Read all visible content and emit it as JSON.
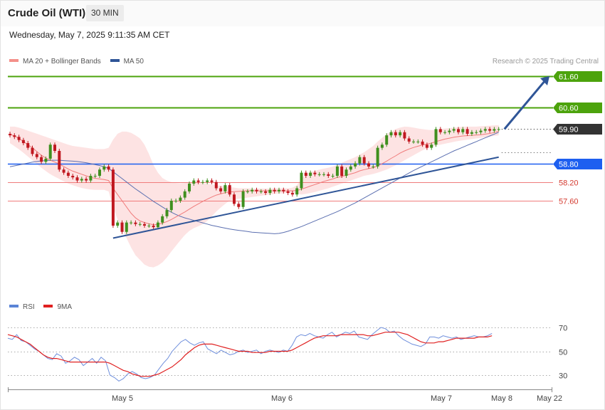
{
  "header": {
    "title": "Crude Oil (WTI)",
    "timeframe": "30 MIN",
    "datetime": "Wednesday, May 7, 2025 9:11:35 AM CET"
  },
  "legend_main": [
    {
      "label": "MA 20 + Bollinger Bands",
      "color": "#f4908a"
    },
    {
      "label": "MA 50",
      "color": "#2f5597"
    }
  ],
  "credit": "Research © 2025 Trading Central",
  "legend_rsi": [
    {
      "label": "RSI",
      "color": "#5b84d6"
    },
    {
      "label": "9MA",
      "color": "#e02020"
    }
  ],
  "colors": {
    "resistance": "#4ca30c",
    "support": "#1d5ff0",
    "support_minor": "#f07c7c",
    "last_price": "#333333",
    "arrow": "#2f5597",
    "candle_up": "#3f8f1e",
    "candle_down": "#c01820",
    "band_fill": "#fde3e3"
  },
  "chart_data": [
    {
      "type": "candlestick",
      "y_range": [
        56.95,
        62.05
      ],
      "x_labels": [
        "May 5",
        "May 6",
        "May 7",
        "May 8",
        "May 22"
      ],
      "levels": [
        {
          "value": 61.6,
          "label": "61.60",
          "kind": "resistance"
        },
        {
          "value": 60.6,
          "label": "60.60",
          "kind": "resistance"
        },
        {
          "value": 59.9,
          "label": "59.90",
          "kind": "last"
        },
        {
          "value": 58.8,
          "label": "58.80",
          "kind": "support"
        },
        {
          "value": 58.2,
          "label": "58.20",
          "kind": "support_minor"
        },
        {
          "value": 57.6,
          "label": "57.60",
          "kind": "support_minor"
        }
      ],
      "close": [
        59.7,
        59.65,
        59.55,
        59.45,
        59.3,
        59.1,
        59.0,
        58.85,
        58.95,
        59.4,
        59.2,
        58.6,
        58.5,
        58.4,
        58.35,
        58.25,
        58.3,
        58.25,
        58.4,
        58.4,
        58.6,
        58.7,
        58.6,
        56.8,
        56.9,
        56.6,
        56.9,
        56.9,
        56.85,
        56.85,
        56.8,
        56.8,
        56.75,
        56.9,
        57.1,
        57.3,
        57.6,
        57.6,
        57.7,
        57.9,
        58.15,
        58.25,
        58.2,
        58.2,
        58.25,
        58.2,
        58.0,
        57.9,
        58.1,
        57.8,
        57.5,
        57.4,
        57.9,
        57.9,
        57.95,
        57.9,
        57.9,
        57.85,
        57.95,
        57.9,
        57.95,
        57.9,
        57.85,
        57.8,
        58.0,
        58.5,
        58.4,
        58.5,
        58.45,
        58.45,
        58.45,
        58.4,
        58.4,
        58.7,
        58.4,
        58.6,
        58.7,
        58.8,
        59.0,
        58.8,
        58.7,
        58.7,
        59.3,
        59.4,
        59.7,
        59.8,
        59.7,
        59.8,
        59.6,
        59.5,
        59.5,
        59.5,
        59.4,
        59.3,
        59.4,
        59.9,
        59.8,
        59.8,
        59.85,
        59.9,
        59.8,
        59.9,
        59.75,
        59.8,
        59.8,
        59.85,
        59.9,
        59.85,
        59.9,
        59.9
      ],
      "ma20": [
        59.74,
        59.68,
        59.6,
        59.5,
        59.4,
        59.3,
        59.18,
        59.06,
        58.97,
        58.9,
        58.84,
        58.78,
        58.7,
        58.62,
        58.55,
        58.5,
        58.45,
        58.4,
        58.35,
        58.32,
        58.3,
        58.28,
        58.25,
        58.0,
        57.8,
        57.6,
        57.4,
        57.2,
        57.05,
        56.95,
        56.9,
        56.86,
        56.83,
        56.84,
        56.88,
        56.93,
        57.0,
        57.08,
        57.16,
        57.24,
        57.33,
        57.42,
        57.5,
        57.58,
        57.65,
        57.72,
        57.78,
        57.82,
        57.86,
        57.88,
        57.89,
        57.9,
        57.91,
        57.92,
        57.92,
        57.92,
        57.92,
        57.92,
        57.92,
        57.92,
        57.92,
        57.92,
        57.92,
        57.92,
        57.93,
        57.97,
        58.02,
        58.07,
        58.12,
        58.17,
        58.22,
        58.26,
        58.3,
        58.35,
        58.38,
        58.42,
        58.46,
        58.5,
        58.56,
        58.6,
        58.63,
        58.66,
        58.72,
        58.79,
        58.87,
        58.96,
        59.04,
        59.13,
        59.2,
        59.26,
        59.31,
        59.35,
        59.39,
        59.42,
        59.45,
        59.5,
        59.54,
        59.58,
        59.61,
        59.64,
        59.66,
        59.68,
        59.69,
        59.7,
        59.71,
        59.72,
        59.74,
        59.76,
        59.79,
        59.83
      ],
      "bb_upper": [
        59.98,
        59.98,
        59.95,
        59.9,
        59.85,
        59.8,
        59.75,
        59.7,
        59.65,
        59.6,
        59.55,
        59.5,
        59.45,
        59.4,
        59.36,
        59.34,
        59.32,
        59.3,
        59.28,
        59.26,
        59.26,
        59.26,
        59.3,
        59.56,
        59.75,
        59.82,
        59.82,
        59.78,
        59.7,
        59.6,
        59.4,
        59.1,
        58.75,
        58.5,
        58.33,
        58.25,
        58.2,
        58.17,
        58.16,
        58.17,
        58.18,
        58.18,
        58.17,
        58.16,
        58.14,
        58.12,
        58.1,
        58.08,
        58.06,
        58.04,
        58.02,
        58.0,
        58.0,
        58.0,
        57.99,
        57.99,
        57.99,
        57.99,
        57.99,
        58.0,
        58.0,
        58.0,
        58.0,
        58.02,
        58.1,
        58.3,
        58.45,
        58.52,
        58.56,
        58.6,
        58.63,
        58.66,
        58.7,
        58.75,
        58.82,
        58.88,
        58.94,
        59.0,
        59.08,
        59.16,
        59.26,
        59.36,
        59.5,
        59.62,
        59.74,
        59.82,
        59.9,
        59.95,
        59.98,
        59.97,
        59.95,
        59.92,
        59.9,
        59.88,
        59.87,
        59.88,
        59.9,
        59.92,
        59.93,
        59.95,
        59.96,
        59.98,
        59.98,
        59.98,
        59.98,
        59.99,
        60.0,
        60.01,
        60.02,
        60.03
      ],
      "bb_lower": [
        59.45,
        59.35,
        59.25,
        59.14,
        59.02,
        58.9,
        58.78,
        58.66,
        58.55,
        58.45,
        58.37,
        58.3,
        58.22,
        58.15,
        58.1,
        58.05,
        58.01,
        57.98,
        57.96,
        57.95,
        57.95,
        57.95,
        57.9,
        57.4,
        57.0,
        56.7,
        56.4,
        56.1,
        55.85,
        55.7,
        55.55,
        55.48,
        55.46,
        55.52,
        55.62,
        55.78,
        55.97,
        56.15,
        56.33,
        56.5,
        56.63,
        56.72,
        56.78,
        56.85,
        56.95,
        57.1,
        57.25,
        57.38,
        57.5,
        57.6,
        57.64,
        57.66,
        57.68,
        57.7,
        57.72,
        57.74,
        57.76,
        57.78,
        57.8,
        57.82,
        57.83,
        57.84,
        57.85,
        57.84,
        57.82,
        57.8,
        57.82,
        57.85,
        57.88,
        57.92,
        57.96,
        58.0,
        58.05,
        58.1,
        58.15,
        58.2,
        58.25,
        58.3,
        58.35,
        58.4,
        58.43,
        58.46,
        58.5,
        58.55,
        58.6,
        58.67,
        58.74,
        58.82,
        58.9,
        58.98,
        59.06,
        59.14,
        59.22,
        59.28,
        59.33,
        59.37,
        59.4,
        59.43,
        59.46,
        59.49,
        59.52,
        59.54,
        59.56,
        59.58,
        59.6,
        59.62,
        59.64,
        59.66,
        59.68,
        59.7
      ],
      "ma50": [
        58.69,
        58.72,
        58.75,
        58.78,
        58.81,
        58.84,
        58.86,
        58.88,
        58.89,
        58.9,
        58.9,
        58.9,
        58.89,
        58.88,
        58.87,
        58.86,
        58.84,
        58.82,
        58.79,
        58.76,
        58.73,
        58.69,
        58.64,
        58.53,
        58.42,
        58.31,
        58.2,
        58.09,
        57.98,
        57.88,
        57.78,
        57.68,
        57.58,
        57.49,
        57.4,
        57.31,
        57.23,
        57.16,
        57.1,
        57.05,
        57.01,
        56.97,
        56.93,
        56.89,
        56.85,
        56.81,
        56.78,
        56.75,
        56.72,
        56.69,
        56.67,
        56.65,
        56.63,
        56.61,
        56.59,
        56.58,
        56.57,
        56.56,
        56.55,
        56.54,
        56.55,
        56.58,
        56.62,
        56.67,
        56.72,
        56.77,
        56.83,
        56.89,
        56.95,
        57.01,
        57.07,
        57.13,
        57.19,
        57.25,
        57.32,
        57.39,
        57.46,
        57.53,
        57.61,
        57.69,
        57.77,
        57.85,
        57.93,
        58.01,
        58.09,
        58.17,
        58.25,
        58.33,
        58.41,
        58.49,
        58.57,
        58.64,
        58.71,
        58.78,
        58.85,
        58.92,
        58.99,
        59.06,
        59.13,
        59.2,
        59.26,
        59.32,
        59.38,
        59.44,
        59.5,
        59.56,
        59.62,
        59.68,
        59.74,
        59.8
      ],
      "trendline": [
        {
          "x_index": 23,
          "value": 56.4
        },
        {
          "x_index": 109,
          "value": 59.0
        }
      ],
      "projection_arrow": {
        "from": 59.9,
        "to": 61.6
      }
    },
    {
      "type": "line",
      "title": "RSI",
      "y_range": [
        20,
        80
      ],
      "y_ticks": [
        70,
        50,
        30
      ],
      "series": [
        {
          "name": "RSI",
          "values": [
            61,
            60,
            64,
            59,
            58,
            55,
            52,
            50,
            47,
            44,
            43,
            48,
            46,
            40,
            42,
            45,
            43,
            38,
            41,
            44,
            40,
            45,
            42,
            30,
            28,
            25,
            27,
            31,
            33,
            31,
            28,
            27,
            28,
            30,
            35,
            40,
            44,
            50,
            54,
            58,
            60,
            57,
            55,
            57,
            58,
            52,
            50,
            48,
            51,
            49,
            47,
            48,
            50,
            51,
            49,
            50,
            51,
            48,
            50,
            51,
            50,
            49,
            51,
            50,
            55,
            62,
            64,
            63,
            65,
            63,
            62,
            61,
            64,
            66,
            62,
            64,
            66,
            65,
            67,
            62,
            61,
            60,
            64,
            67,
            70,
            69,
            66,
            67,
            63,
            60,
            58,
            56,
            55,
            54,
            56,
            62,
            62,
            61,
            63,
            62,
            61,
            62,
            60,
            61,
            62,
            63,
            62,
            62,
            63,
            65
          ]
        },
        {
          "name": "9MA",
          "values": [
            64,
            63,
            62,
            60,
            58,
            56,
            53,
            50,
            47,
            45,
            44,
            44,
            43,
            42,
            41,
            41,
            41,
            41,
            41,
            41,
            41,
            41,
            41,
            40,
            38,
            36,
            34,
            33,
            31,
            30,
            29,
            29,
            29,
            30,
            31,
            33,
            35,
            37,
            40,
            43,
            47,
            50,
            53,
            55,
            56,
            56,
            56,
            55,
            54,
            53,
            52,
            51,
            50,
            50,
            50,
            49,
            49,
            49,
            49,
            50,
            50,
            50,
            50,
            50,
            51,
            53,
            55,
            57,
            59,
            61,
            62,
            63,
            63,
            63,
            63,
            64,
            64,
            64,
            64,
            64,
            64,
            63,
            63,
            64,
            65,
            66,
            66,
            66,
            66,
            65,
            64,
            62,
            60,
            58,
            57,
            57,
            57,
            58,
            58,
            59,
            60,
            61,
            61,
            61,
            61,
            61,
            62,
            62,
            62,
            63
          ]
        }
      ]
    }
  ]
}
